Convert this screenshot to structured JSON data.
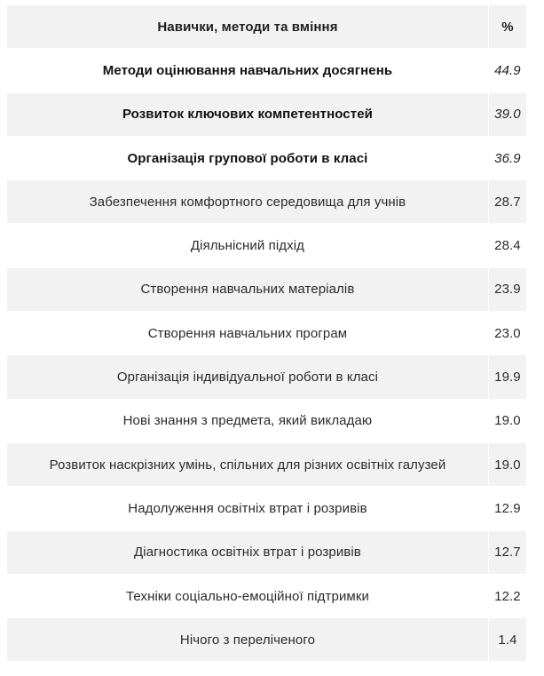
{
  "table": {
    "header": {
      "label": "Навички, методи та вміння",
      "value": "%"
    },
    "rows": [
      {
        "label": "Методи оцінювання навчальних досягнень",
        "value": "44.9"
      },
      {
        "label": "Розвиток ключових компетентностей",
        "value": "39.0"
      },
      {
        "label": "Організація групової роботи в класі",
        "value": "36.9"
      },
      {
        "label": "Забезпечення комфортного середовища для учнів",
        "value": "28.7"
      },
      {
        "label": "Діяльнісний підхід",
        "value": "28.4"
      },
      {
        "label": "Створення навчальних матеріалів",
        "value": "23.9"
      },
      {
        "label": "Створення навчальних програм",
        "value": "23.0"
      },
      {
        "label": "Організація індивідуальної роботи в класі",
        "value": "19.9"
      },
      {
        "label": "Нові знання з предмета, який викладаю",
        "value": "19.0"
      },
      {
        "label": "Розвиток наскрізних умінь, спільних для різних освітніх галузей",
        "value": "19.0"
      },
      {
        "label": "Надолуження освітніх втрат і розривів",
        "value": "12.9"
      },
      {
        "label": "Діагностика освітніх втрат і розривів",
        "value": "12.7"
      },
      {
        "label": "Техніки соціально-емоційної підтримки",
        "value": "12.2"
      },
      {
        "label": "Нічого з переліченого",
        "value": "1.4"
      }
    ]
  }
}
